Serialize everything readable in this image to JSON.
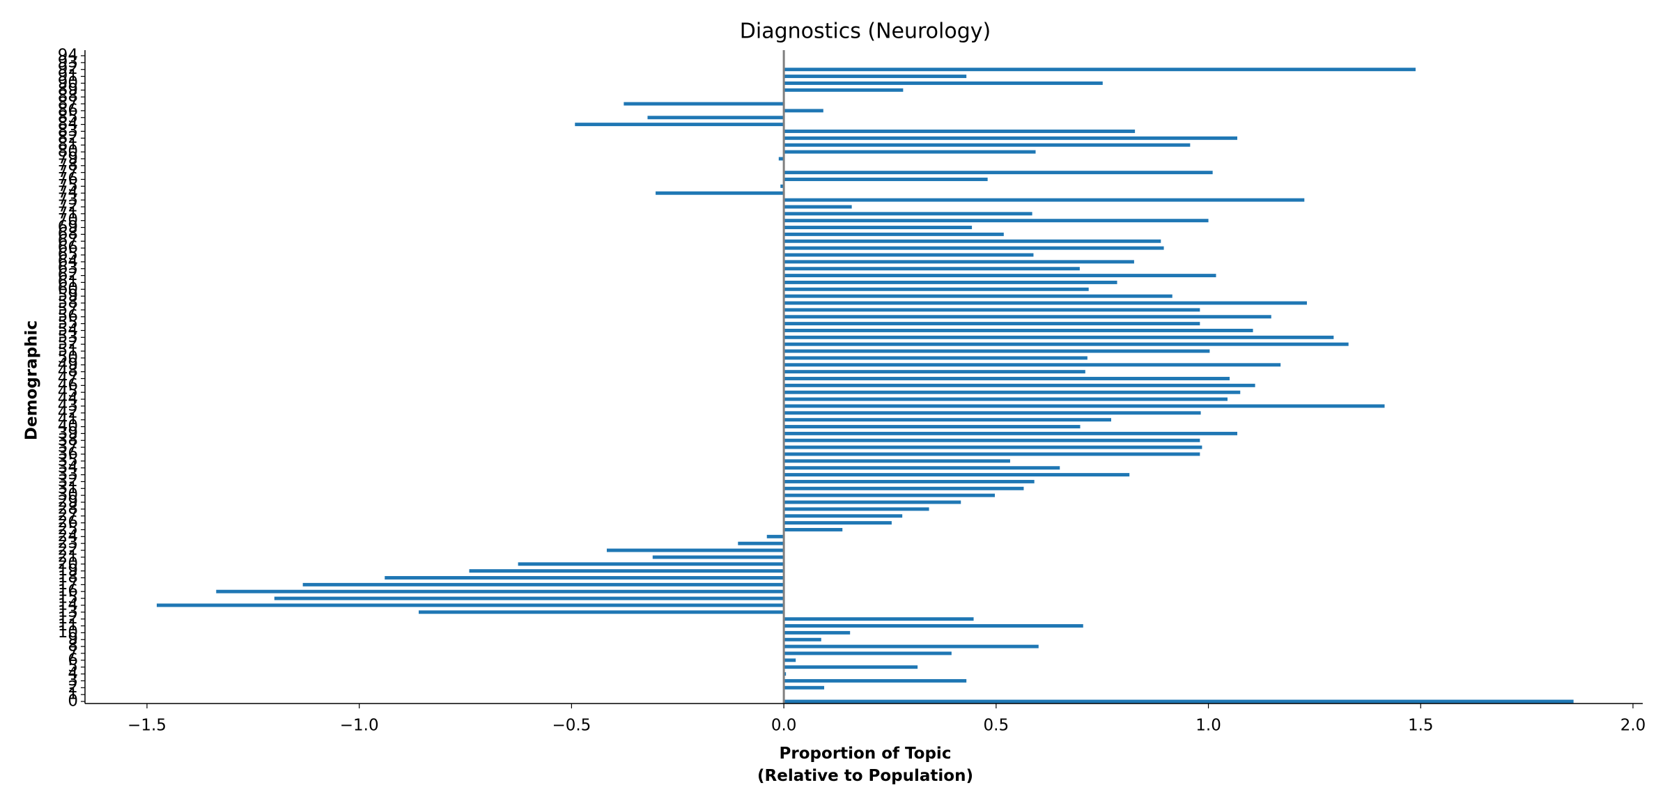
{
  "chart_data": {
    "type": "barh",
    "title": "Diagnostics (Neurology)",
    "x_label": "Proportion of Topic\n(Relative to Population)",
    "y_label": "Demographic",
    "color": "#1f77b4",
    "categories": [
      "0",
      "1",
      "2",
      "3",
      "4",
      "5",
      "6",
      "7",
      "8",
      "9",
      "10",
      "11",
      "12",
      "13",
      "14",
      "15",
      "16",
      "17",
      "18",
      "19",
      "20",
      "21",
      "22",
      "23",
      "24",
      "25",
      "26",
      "27",
      "28",
      "29",
      "30",
      "31",
      "32",
      "33",
      "34",
      "35",
      "36",
      "37",
      "38",
      "39",
      "40",
      "41",
      "42",
      "43",
      "44",
      "45",
      "46",
      "47",
      "48",
      "49",
      "50",
      "51",
      "52",
      "53",
      "54",
      "55",
      "56",
      "57",
      "58",
      "59",
      "60",
      "61",
      "62",
      "63",
      "64",
      "65",
      "66",
      "67",
      "68",
      "69",
      "70",
      "71",
      "72",
      "73",
      "74",
      "75",
      "76",
      "77",
      "78",
      "79",
      "80",
      "81",
      "82",
      "83",
      "84",
      "85",
      "86",
      "87",
      "88",
      "89",
      "90",
      "91",
      "92",
      "93",
      "94"
    ],
    "values": [
      1.86,
      0,
      0.095,
      0.43,
      0.005,
      0.315,
      0.028,
      0.395,
      0.6,
      0.088,
      0.156,
      0.705,
      0.447,
      -0.86,
      -1.477,
      -1.2,
      -1.337,
      -1.133,
      -0.94,
      -0.741,
      -0.626,
      -0.309,
      -0.417,
      -0.108,
      -0.04,
      0.138,
      0.254,
      0.279,
      0.342,
      0.417,
      0.497,
      0.565,
      0.59,
      0.814,
      0.65,
      0.533,
      0.98,
      0.985,
      0.98,
      1.068,
      0.698,
      0.771,
      0.982,
      1.415,
      1.045,
      1.075,
      1.11,
      1.05,
      0.71,
      1.17,
      0.715,
      1.003,
      1.33,
      1.295,
      1.105,
      0.98,
      1.148,
      0.98,
      1.232,
      0.915,
      0.718,
      0.785,
      1.018,
      0.697,
      0.825,
      0.588,
      0.895,
      0.888,
      0.518,
      0.443,
      1.0,
      0.585,
      0.16,
      1.226,
      -0.302,
      -0.008,
      0.48,
      1.01,
      0,
      -0.012,
      0.593,
      0.957,
      1.068,
      0.827,
      -0.492,
      -0.321,
      0.093,
      -0.377,
      0,
      0.281,
      0.751,
      0.43,
      1.488,
      0,
      0
    ],
    "xlim": [
      -1.646,
      2.023
    ],
    "xticks": [
      {
        "value": -1.5,
        "label": "−1.5"
      },
      {
        "value": -1.0,
        "label": "−1.0"
      },
      {
        "value": -0.5,
        "label": "−0.5"
      },
      {
        "value": 0,
        "label": "0.0"
      },
      {
        "value": 0.5,
        "label": "0.5"
      },
      {
        "value": 1.0,
        "label": "1.0"
      },
      {
        "value": 1.5,
        "label": "1.5"
      },
      {
        "value": 2.0,
        "label": "2.0"
      }
    ]
  }
}
